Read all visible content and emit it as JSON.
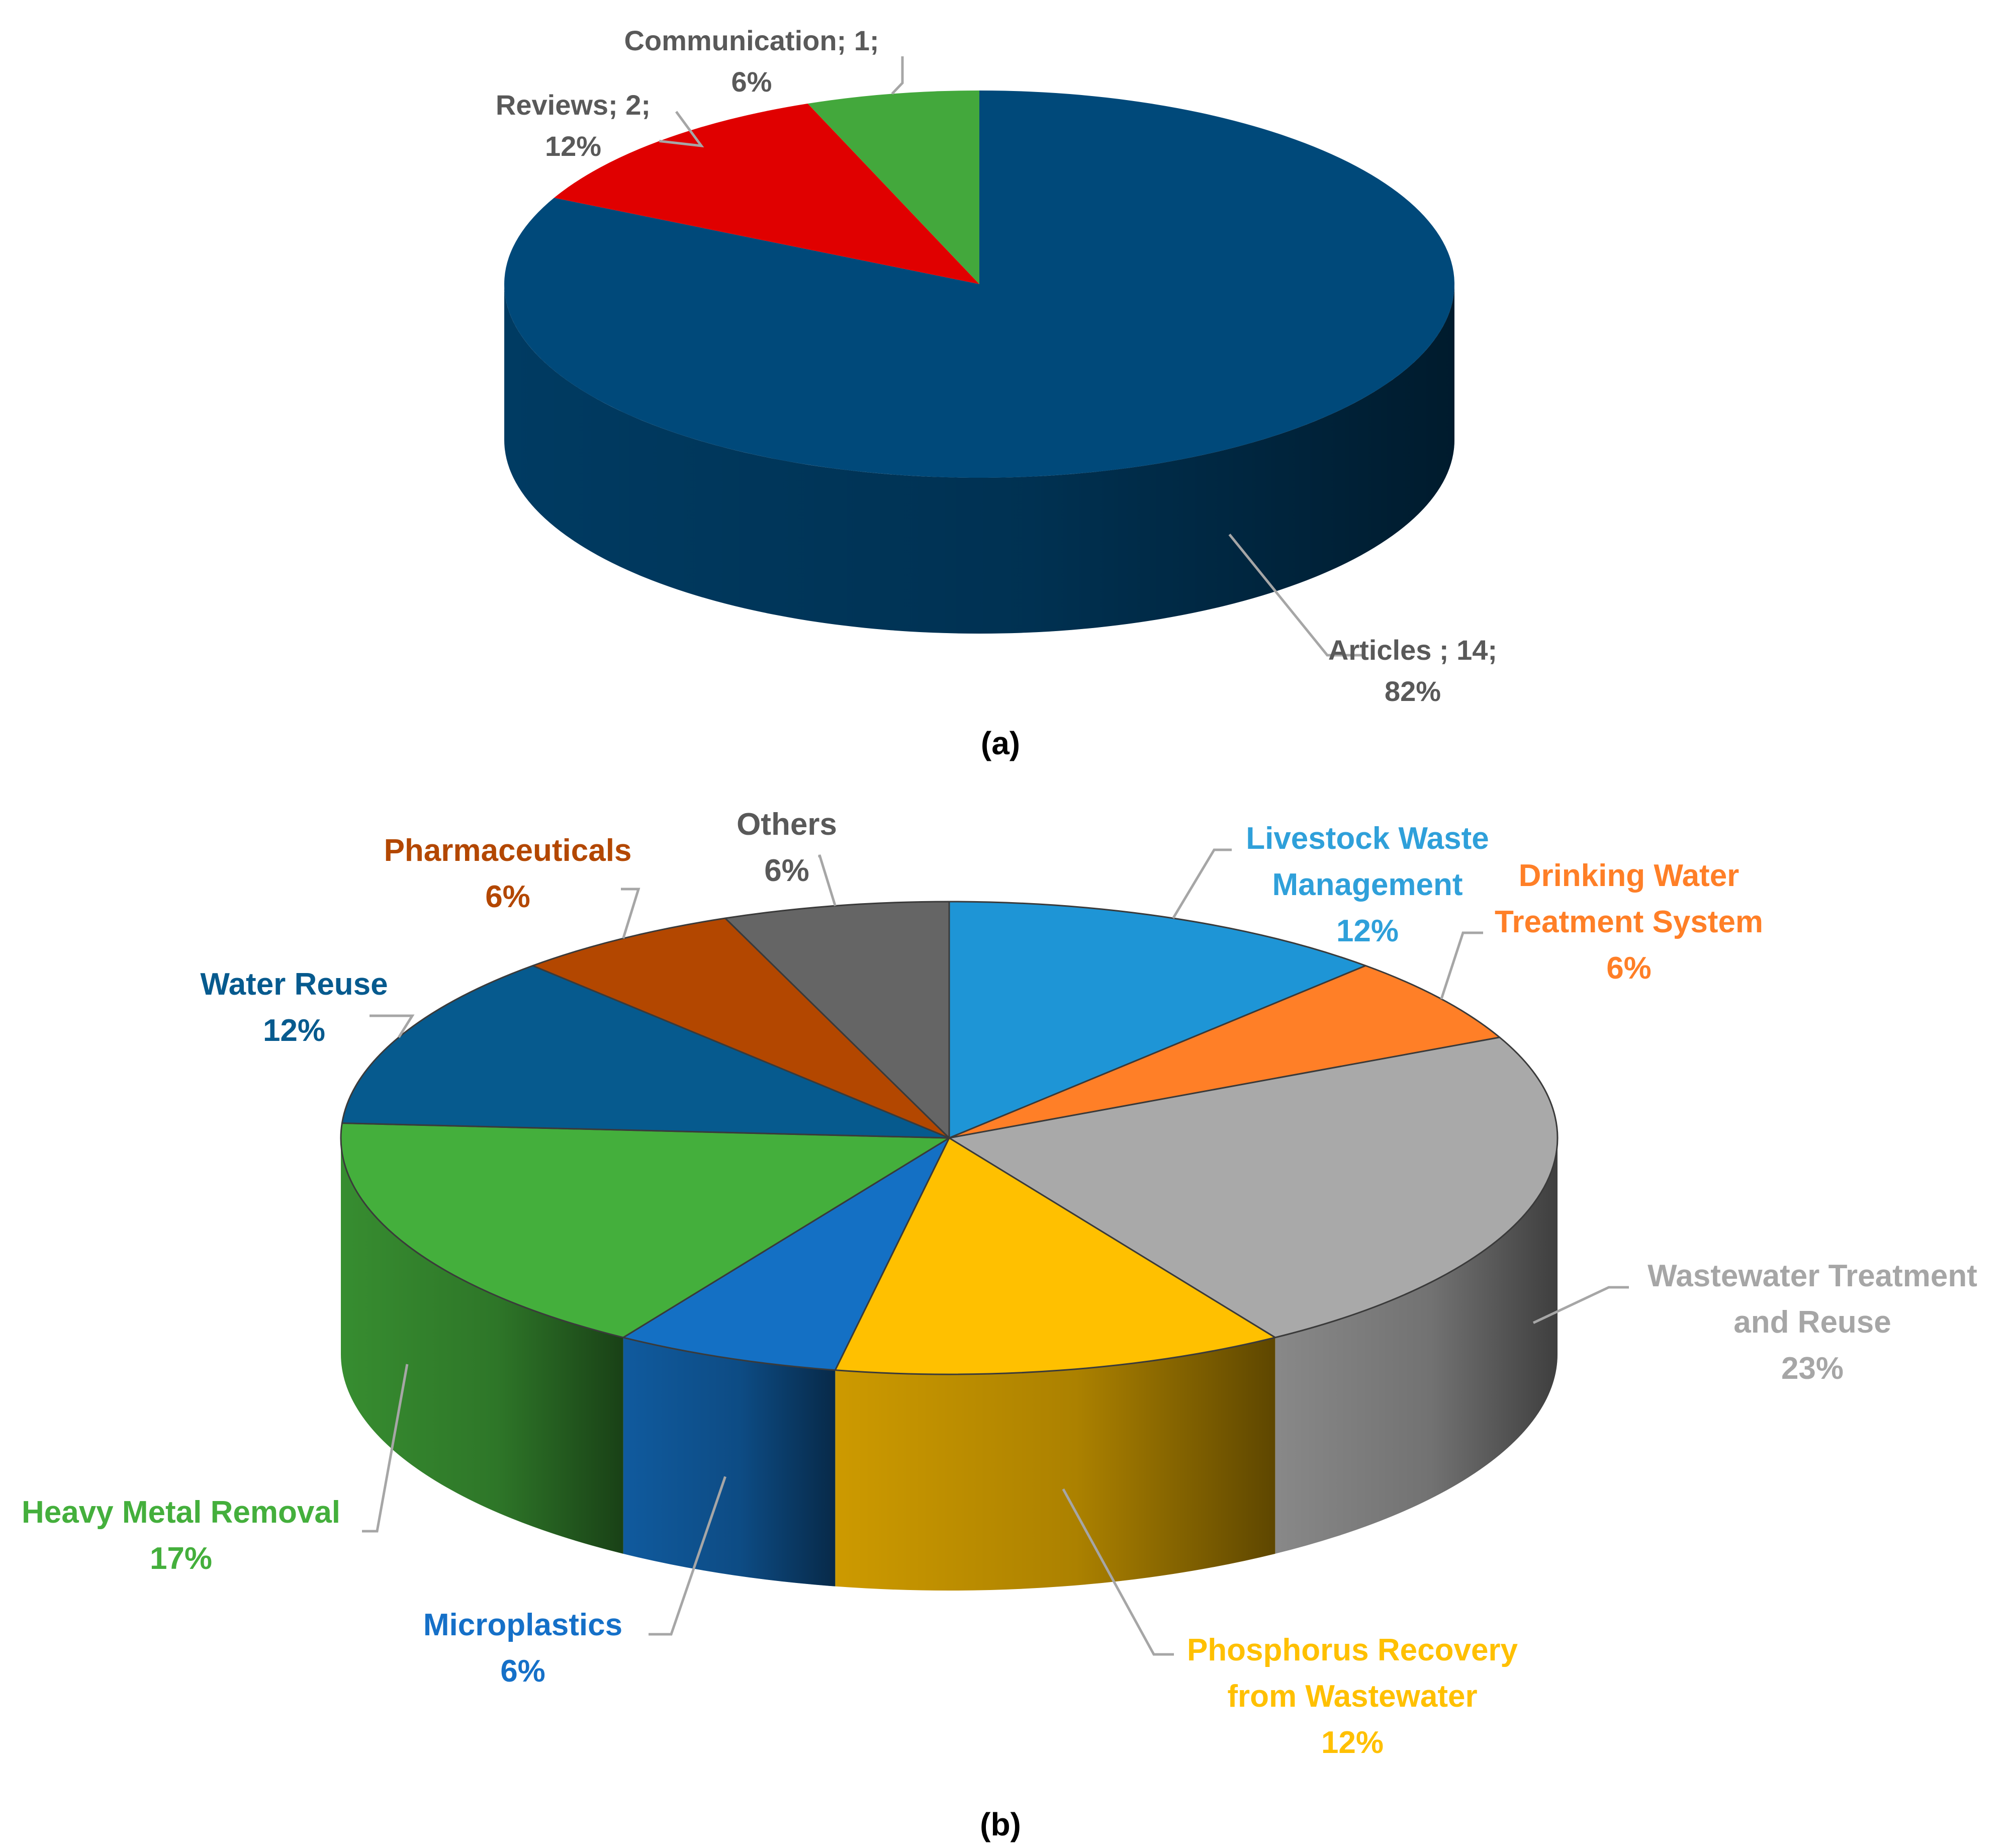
{
  "chart_data": [
    {
      "type": "pie",
      "caption": "(a)",
      "slices": [
        {
          "label": "Articles ;",
          "value": 14,
          "percent": "82%",
          "color": "#00497A"
        },
        {
          "label": "Reviews;",
          "value": 2,
          "percent": "12%",
          "color": "#E00000"
        },
        {
          "label": "Communication;",
          "value": 1,
          "percent": "6%",
          "color": "#43A83C"
        }
      ]
    },
    {
      "type": "pie",
      "caption": "(b)",
      "slices": [
        {
          "label": "Livestock Waste Management",
          "percent": 12,
          "color": "#1E95D6",
          "label_color": "#2FA0DA"
        },
        {
          "label": "Drinking Water Treatment System",
          "percent": 6,
          "color": "#FF7F27",
          "label_color": "#FF7F27"
        },
        {
          "label": "Wastewater Treatment and Reuse",
          "percent": 23,
          "color": "#A9A9A9",
          "label_color": "#A6A6A6"
        },
        {
          "label": "Phosphorus Recovery from Wastewater",
          "percent": 12,
          "color": "#FFC000",
          "label_color": "#FFC000"
        },
        {
          "label": "Microplastics",
          "percent": 6,
          "color": "#1470C4",
          "label_color": "#1570C8"
        },
        {
          "label": "Heavy Metal Removal",
          "percent": 17,
          "color": "#44AF3C",
          "label_color": "#44AF3C"
        },
        {
          "label": "Water Reuse",
          "percent": 12,
          "color": "#065A8E",
          "label_color": "#065A8E"
        },
        {
          "label": "Pharmaceuticals",
          "percent": 6,
          "color": "#B34700",
          "label_color": "#B34700"
        },
        {
          "label": "Others",
          "percent": 6,
          "color": "#656565",
          "label_color": "#595959"
        }
      ]
    }
  ]
}
